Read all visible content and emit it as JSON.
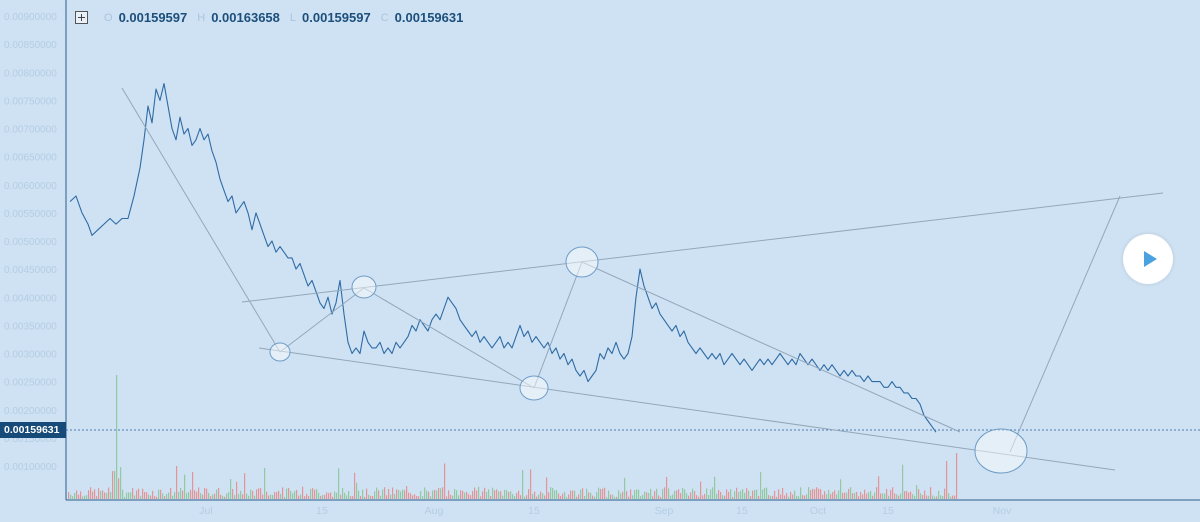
{
  "header": {
    "ohlc": [
      {
        "key": "O",
        "value": "0.00159597"
      },
      {
        "key": "H",
        "value": "0.00163658"
      },
      {
        "key": "L",
        "value": "0.00159597"
      },
      {
        "key": "C",
        "value": "0.00159631"
      }
    ]
  },
  "price_tag": "0.00159631",
  "colors": {
    "background": "#cfe2f3",
    "price_line": "#2e6ba6",
    "trend_line": "#93a7ba",
    "volume_up": "#8bc79a",
    "volume_down": "#e58c8c",
    "price_tag_bg": "#164a78",
    "play_button": "#4aa3e0"
  },
  "chart_data": {
    "type": "line",
    "title": "",
    "y_tick_labels": [
      "0.00900000",
      "0.00850000",
      "0.00800000",
      "0.00750000",
      "0.00700000",
      "0.00650000",
      "0.00600000",
      "0.00550000",
      "0.00500000",
      "0.00450000",
      "0.00400000",
      "0.00350000",
      "0.00300000",
      "0.00250000",
      "0.00200000",
      "0.00150000",
      "0.00100000"
    ],
    "x_tick_labels": [
      "Jul",
      "15",
      "Aug",
      "15",
      "Sep",
      "15",
      "Oct",
      "15",
      "Nov"
    ],
    "ylim": [
      0.00085,
      0.0091
    ],
    "current_price": 0.00159631,
    "grid": false,
    "series": [
      {
        "values": [
          [
            0,
            0.0057
          ],
          [
            3,
            0.0058
          ],
          [
            6,
            0.0055
          ],
          [
            9,
            0.0053
          ],
          [
            11,
            0.0051
          ],
          [
            14,
            0.0052
          ],
          [
            17,
            0.0053
          ],
          [
            20,
            0.0054
          ],
          [
            23,
            0.0053
          ],
          [
            26,
            0.0054
          ],
          [
            29,
            0.0054
          ],
          [
            32,
            0.0058
          ],
          [
            35,
            0.0063
          ],
          [
            37,
            0.0068
          ],
          [
            39,
            0.0074
          ],
          [
            41,
            0.0071
          ],
          [
            43,
            0.0077
          ],
          [
            45,
            0.0075
          ],
          [
            47,
            0.0078
          ],
          [
            49,
            0.0074
          ],
          [
            51,
            0.007
          ],
          [
            53,
            0.0068
          ],
          [
            55,
            0.0072
          ],
          [
            57,
            0.0069
          ],
          [
            59,
            0.007
          ],
          [
            61,
            0.0067
          ],
          [
            63,
            0.0068
          ],
          [
            65,
            0.007
          ],
          [
            67,
            0.0068
          ],
          [
            69,
            0.0069
          ],
          [
            71,
            0.0066
          ],
          [
            73,
            0.0064
          ],
          [
            75,
            0.0061
          ],
          [
            77,
            0.0059
          ],
          [
            79,
            0.0057
          ],
          [
            81,
            0.0058
          ],
          [
            83,
            0.0055
          ],
          [
            85,
            0.0056
          ],
          [
            87,
            0.0057
          ],
          [
            89,
            0.0055
          ],
          [
            91,
            0.0052
          ],
          [
            93,
            0.0055
          ],
          [
            95,
            0.0053
          ],
          [
            97,
            0.0051
          ],
          [
            99,
            0.0049
          ],
          [
            101,
            0.005
          ],
          [
            103,
            0.0048
          ],
          [
            105,
            0.0049
          ],
          [
            107,
            0.0048
          ],
          [
            109,
            0.0047
          ],
          [
            111,
            0.0047
          ],
          [
            113,
            0.0045
          ],
          [
            115,
            0.0046
          ],
          [
            117,
            0.0044
          ],
          [
            119,
            0.0042
          ],
          [
            121,
            0.0043
          ],
          [
            123,
            0.0041
          ],
          [
            125,
            0.0039
          ],
          [
            127,
            0.0038
          ],
          [
            129,
            0.004
          ],
          [
            131,
            0.0037
          ],
          [
            133,
            0.0039
          ],
          [
            135,
            0.0043
          ],
          [
            137,
            0.0037
          ],
          [
            139,
            0.0032
          ],
          [
            141,
            0.003
          ],
          [
            143,
            0.0031
          ],
          [
            145,
            0.003
          ],
          [
            147,
            0.0034
          ],
          [
            149,
            0.0032
          ],
          [
            151,
            0.0031
          ],
          [
            153,
            0.0031
          ],
          [
            155,
            0.0032
          ],
          [
            157,
            0.003
          ],
          [
            159,
            0.0031
          ],
          [
            161,
            0.003
          ],
          [
            163,
            0.0032
          ],
          [
            165,
            0.0031
          ],
          [
            167,
            0.0032
          ],
          [
            169,
            0.0033
          ],
          [
            171,
            0.0035
          ],
          [
            173,
            0.0034
          ],
          [
            175,
            0.0036
          ],
          [
            177,
            0.0035
          ],
          [
            179,
            0.0034
          ],
          [
            181,
            0.0036
          ],
          [
            183,
            0.0037
          ],
          [
            185,
            0.0036
          ],
          [
            187,
            0.0038
          ],
          [
            189,
            0.004
          ],
          [
            191,
            0.0039
          ],
          [
            193,
            0.0038
          ],
          [
            195,
            0.0036
          ],
          [
            197,
            0.0035
          ],
          [
            199,
            0.0034
          ],
          [
            201,
            0.0033
          ],
          [
            203,
            0.0034
          ],
          [
            205,
            0.0032
          ],
          [
            207,
            0.0033
          ],
          [
            209,
            0.0032
          ],
          [
            211,
            0.0031
          ],
          [
            213,
            0.0032
          ],
          [
            215,
            0.0033
          ],
          [
            217,
            0.0031
          ],
          [
            219,
            0.0032
          ],
          [
            221,
            0.0031
          ],
          [
            223,
            0.0033
          ],
          [
            225,
            0.0035
          ],
          [
            227,
            0.0033
          ],
          [
            229,
            0.0034
          ],
          [
            231,
            0.0032
          ],
          [
            233,
            0.0033
          ],
          [
            235,
            0.0032
          ],
          [
            237,
            0.0031
          ],
          [
            239,
            0.0032
          ],
          [
            241,
            0.003
          ],
          [
            243,
            0.0031
          ],
          [
            245,
            0.0029
          ],
          [
            247,
            0.003
          ],
          [
            249,
            0.0028
          ],
          [
            251,
            0.0029
          ],
          [
            253,
            0.0027
          ],
          [
            255,
            0.0026
          ],
          [
            257,
            0.0027
          ],
          [
            259,
            0.0025
          ],
          [
            261,
            0.0026
          ],
          [
            263,
            0.0027
          ],
          [
            265,
            0.003
          ],
          [
            267,
            0.0029
          ],
          [
            269,
            0.0031
          ],
          [
            271,
            0.003
          ],
          [
            273,
            0.0032
          ],
          [
            275,
            0.003
          ],
          [
            277,
            0.0029
          ],
          [
            279,
            0.003
          ],
          [
            281,
            0.0033
          ],
          [
            283,
            0.004
          ],
          [
            285,
            0.0045
          ],
          [
            287,
            0.0042
          ],
          [
            289,
            0.004
          ],
          [
            291,
            0.0038
          ],
          [
            293,
            0.0039
          ],
          [
            295,
            0.0037
          ],
          [
            297,
            0.0036
          ],
          [
            299,
            0.0035
          ],
          [
            301,
            0.0034
          ],
          [
            303,
            0.0035
          ],
          [
            305,
            0.0033
          ],
          [
            307,
            0.0034
          ],
          [
            309,
            0.0032
          ],
          [
            311,
            0.0031
          ],
          [
            313,
            0.003
          ],
          [
            315,
            0.0031
          ],
          [
            317,
            0.003
          ],
          [
            319,
            0.0029
          ],
          [
            321,
            0.003
          ],
          [
            323,
            0.0029
          ],
          [
            325,
            0.003
          ],
          [
            327,
            0.0028
          ],
          [
            329,
            0.0029
          ],
          [
            331,
            0.003
          ],
          [
            333,
            0.0029
          ],
          [
            335,
            0.0028
          ],
          [
            337,
            0.0029
          ],
          [
            339,
            0.0028
          ],
          [
            341,
            0.0027
          ],
          [
            343,
            0.0028
          ],
          [
            345,
            0.0029
          ],
          [
            347,
            0.0028
          ],
          [
            349,
            0.0029
          ],
          [
            351,
            0.0028
          ],
          [
            353,
            0.0029
          ],
          [
            355,
            0.003
          ],
          [
            357,
            0.0029
          ],
          [
            359,
            0.0028
          ],
          [
            361,
            0.0029
          ],
          [
            363,
            0.0028
          ],
          [
            365,
            0.003
          ],
          [
            367,
            0.0029
          ],
          [
            369,
            0.0028
          ],
          [
            371,
            0.0029
          ],
          [
            373,
            0.0028
          ],
          [
            375,
            0.0027
          ],
          [
            377,
            0.0028
          ],
          [
            379,
            0.0027
          ],
          [
            381,
            0.0028
          ],
          [
            383,
            0.0027
          ],
          [
            385,
            0.0026
          ],
          [
            387,
            0.0027
          ],
          [
            389,
            0.0026
          ],
          [
            391,
            0.0027
          ],
          [
            393,
            0.0026
          ],
          [
            395,
            0.0026
          ],
          [
            397,
            0.0025
          ],
          [
            399,
            0.0026
          ],
          [
            401,
            0.0025
          ],
          [
            403,
            0.0025
          ],
          [
            405,
            0.0025
          ],
          [
            407,
            0.0024
          ],
          [
            409,
            0.0024
          ],
          [
            411,
            0.0025
          ],
          [
            413,
            0.0024
          ],
          [
            415,
            0.0024
          ],
          [
            417,
            0.0023
          ],
          [
            419,
            0.0023
          ],
          [
            421,
            0.0022
          ],
          [
            423,
            0.0022
          ],
          [
            425,
            0.0021
          ],
          [
            427,
            0.0019
          ],
          [
            429,
            0.0018
          ],
          [
            431,
            0.0017
          ],
          [
            433,
            0.0016
          ]
        ]
      }
    ]
  }
}
